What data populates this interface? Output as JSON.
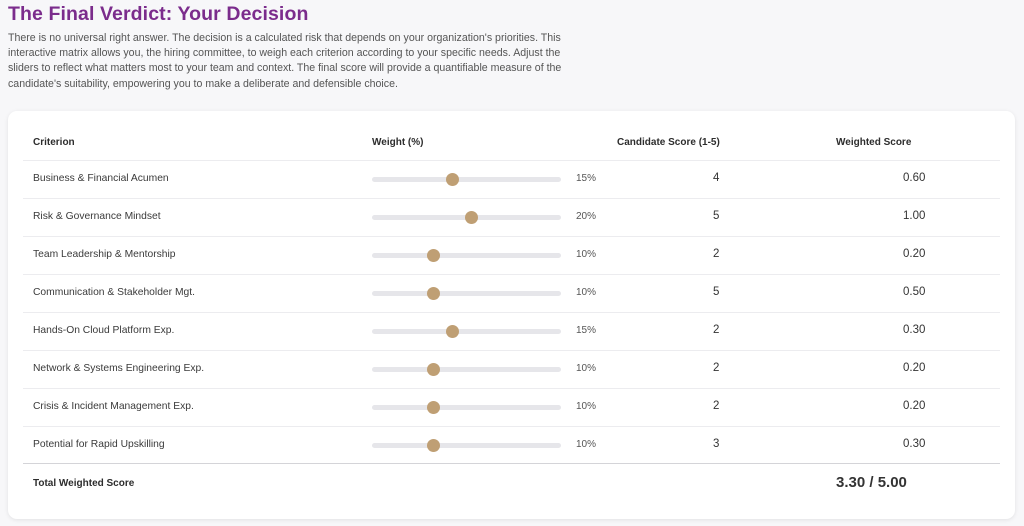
{
  "page": {
    "title": "The Final Verdict: Your Decision",
    "intro": "There is no universal right answer. The decision is a calculated risk that depends on your organization's priorities. This interactive matrix allows you, the hiring committee, to weigh each criterion according to your specific needs. Adjust the sliders to reflect what matters most to your team and context. The final score will provide a quantifiable measure of the candidate's suitability, empowering you to make a deliberate and defensible choice."
  },
  "table": {
    "headers": {
      "criterion": "Criterion",
      "weight": "Weight (%)",
      "candidate_score": "Candidate Score (1-5)",
      "weighted_score": "Weighted Score"
    },
    "rows": [
      {
        "criterion": "Business & Financial Acumen",
        "weight": 15,
        "weight_label": "15%",
        "candidate_score": "4",
        "weighted_score": "0.60"
      },
      {
        "criterion": "Risk & Governance Mindset",
        "weight": 20,
        "weight_label": "20%",
        "candidate_score": "5",
        "weighted_score": "1.00"
      },
      {
        "criterion": "Team Leadership & Mentorship",
        "weight": 10,
        "weight_label": "10%",
        "candidate_score": "2",
        "weighted_score": "0.20"
      },
      {
        "criterion": "Communication & Stakeholder Mgt.",
        "weight": 10,
        "weight_label": "10%",
        "candidate_score": "5",
        "weighted_score": "0.50"
      },
      {
        "criterion": "Hands-On Cloud Platform Exp.",
        "weight": 15,
        "weight_label": "15%",
        "candidate_score": "2",
        "weighted_score": "0.30"
      },
      {
        "criterion": "Network & Systems Engineering Exp.",
        "weight": 10,
        "weight_label": "10%",
        "candidate_score": "2",
        "weighted_score": "0.20"
      },
      {
        "criterion": "Crisis & Incident Management Exp.",
        "weight": 10,
        "weight_label": "10%",
        "candidate_score": "2",
        "weighted_score": "0.20"
      },
      {
        "criterion": "Potential for Rapid Upskilling",
        "weight": 10,
        "weight_label": "10%",
        "candidate_score": "3",
        "weighted_score": "0.30"
      }
    ],
    "total_label": "Total Weighted Score",
    "total_value": "3.30 / 5.00"
  },
  "colors": {
    "title": "#7b2c8c",
    "slider_thumb": "#bf9f74",
    "slider_track": "#e6e6ea",
    "background": "#f7f7f9"
  }
}
